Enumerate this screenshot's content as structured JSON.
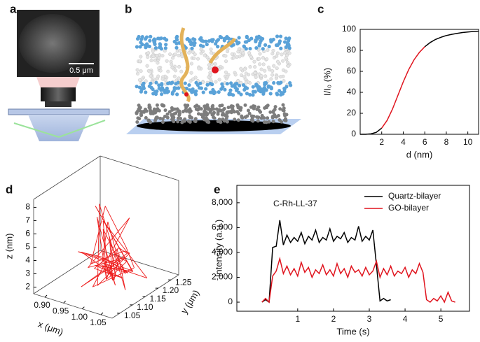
{
  "panel_labels": [
    "a",
    "b",
    "c",
    "d",
    "e"
  ],
  "panel_a": {
    "scale_bar": "0.5 μm"
  },
  "chart_data": [
    {
      "type": "line",
      "xlabel": "d (nm)",
      "ylabel": "I/I₀ (%)",
      "x": [
        0,
        0.5,
        1,
        1.5,
        2,
        2.5,
        3,
        3.5,
        4,
        4.5,
        5,
        5.5,
        6,
        6.5,
        7,
        7.5,
        8,
        8.5,
        9,
        9.5,
        10,
        10.5,
        11
      ],
      "series": [
        {
          "color": "#000000",
          "values": [
            0,
            0.0,
            0.4,
            1.9,
            5.9,
            null,
            null,
            null,
            null,
            null,
            null,
            null,
            83.5,
            87.5,
            90.4,
            92.5,
            94.1,
            95.3,
            96.2,
            97.0,
            97.5,
            98.0,
            98.3
          ]
        },
        {
          "color": "#e0141e",
          "values": [
            null,
            null,
            null,
            null,
            5.9,
            13.2,
            24.0,
            37.0,
            50.0,
            61.5,
            70.9,
            78.1,
            83.5,
            null,
            null,
            null,
            null,
            null,
            null,
            null,
            null,
            null,
            null
          ]
        }
      ],
      "xlim": [
        0,
        11
      ],
      "xticks": [
        2,
        4,
        6,
        8,
        10
      ],
      "ylim": [
        0,
        100
      ],
      "yticks": [
        0,
        20,
        40,
        60,
        80,
        100
      ]
    },
    {
      "type": "line3d",
      "xlabel": "x (μm)",
      "ylabel": "y (μm)",
      "zlabel": "z (nm)",
      "color": "#ee1c1c",
      "x": [
        0.98,
        1.02,
        0.93,
        1.01,
        0.97,
        1.04,
        0.95,
        1.0,
        0.99,
        1.03,
        0.92,
        1.0,
        0.96,
        1.05,
        0.98,
        1.01,
        0.94,
        1.02,
        0.97,
        0.99,
        1.03,
        0.95,
        1.0,
        0.98,
        1.04,
        0.96,
        1.01,
        0.9,
        0.99,
        1.02,
        0.97,
        1.0,
        0.95,
        1.03,
        0.98,
        1.01,
        0.96,
        1.04,
        0.99,
        0.93,
        1.0,
        0.97,
        1.02,
        0.98,
        1.05,
        0.96,
        1.0,
        0.99,
        1.01,
        0.97
      ],
      "y": [
        1.15,
        1.12,
        1.18,
        1.1,
        1.2,
        1.13,
        1.16,
        1.08,
        1.22,
        1.14,
        1.17,
        1.11,
        1.25,
        1.15,
        1.09,
        1.19,
        1.13,
        1.16,
        1.06,
        1.21,
        1.12,
        1.14,
        1.18,
        1.1,
        1.16,
        1.13,
        1.2,
        1.15,
        1.11,
        1.17,
        1.14,
        1.12,
        1.23,
        1.15,
        1.18,
        1.1,
        1.16,
        1.13,
        1.19,
        1.12,
        1.15,
        1.17,
        1.11,
        1.14,
        1.2,
        1.16,
        1.12,
        1.18,
        1.13,
        1.15
      ],
      "z": [
        3.0,
        2.2,
        5.8,
        2.8,
        3.5,
        1.9,
        7.2,
        2.5,
        3.1,
        4.6,
        2.3,
        8.1,
        2.9,
        3.4,
        2.1,
        6.3,
        2.7,
        3.8,
        2.4,
        3.2,
        5.1,
        2.6,
        1.8,
        3.6,
        2.9,
        7.5,
        2.2,
        3.3,
        4.2,
        2.5,
        3.0,
        6.8,
        2.4,
        3.7,
        2.1,
        2.8,
        5.4,
        3.1,
        2.6,
        3.9,
        2.3,
        4.8,
        2.7,
        3.2,
        2.0,
        6.0,
        2.9,
        3.5,
        2.4,
        3.1
      ],
      "xlim": [
        0.87,
        1.08
      ],
      "xticks": [
        {
          "value": 0.9,
          "label": "0.90"
        },
        {
          "value": 0.95,
          "label": "0.95"
        },
        {
          "value": 1.0,
          "label": "1.00"
        },
        1.05
      ],
      "ylim": [
        1.02,
        1.28
      ],
      "yticks": [
        1.05,
        {
          "value": 1.1,
          "label": "1.10"
        },
        1.15,
        {
          "value": 1.2,
          "label": "1.20"
        },
        1.25
      ],
      "zlim": [
        1.5,
        8.6
      ],
      "zticks": [
        2,
        3,
        4,
        5,
        6,
        7,
        8
      ]
    },
    {
      "type": "line",
      "xlabel": "Time (s)",
      "ylabel": "Intensity (a.u.)",
      "annotation": "C-Rh-LL-37",
      "legend": "top-right",
      "frame": true,
      "x": [
        0,
        0.1,
        0.2,
        0.3,
        0.4,
        0.5,
        0.6,
        0.7,
        0.8,
        0.9,
        1.0,
        1.1,
        1.2,
        1.3,
        1.4,
        1.5,
        1.6,
        1.7,
        1.8,
        1.9,
        2.0,
        2.1,
        2.2,
        2.3,
        2.4,
        2.5,
        2.6,
        2.7,
        2.8,
        2.9,
        3.0,
        3.1,
        3.2,
        3.3,
        3.4,
        3.5,
        3.6,
        3.7,
        3.8,
        3.9,
        4.0,
        4.1,
        4.2,
        4.3,
        4.4,
        4.5,
        4.6,
        4.7,
        4.8,
        4.9,
        5.0,
        5.1,
        5.2,
        5.3,
        5.4
      ],
      "series": [
        {
          "name": "Quartz-bilayer",
          "color": "#000000",
          "values": [
            0,
            200,
            0,
            4400,
            4500,
            6600,
            4600,
            5400,
            4800,
            5200,
            4900,
            5600,
            4700,
            5300,
            5000,
            5800,
            4800,
            5200,
            5000,
            5900,
            4900,
            5300,
            5100,
            5600,
            4800,
            5200,
            5000,
            6100,
            4900,
            5300,
            5000,
            5800,
            3000,
            100,
            300,
            100,
            200,
            null,
            null,
            null,
            null,
            null,
            null,
            null,
            null,
            null,
            null,
            null,
            null,
            null,
            null,
            null,
            null,
            null,
            null
          ]
        },
        {
          "name": "GO-bilayer",
          "color": "#e0141e",
          "values": [
            0,
            300,
            0,
            2100,
            2500,
            3500,
            2300,
            2900,
            2200,
            2700,
            2100,
            3200,
            2400,
            2800,
            2000,
            2600,
            2300,
            3000,
            2200,
            2600,
            2100,
            3100,
            2300,
            2700,
            2000,
            2900,
            2400,
            2600,
            2100,
            2800,
            2200,
            2500,
            3300,
            2000,
            2700,
            2200,
            2900,
            2100,
            2500,
            2300,
            2800,
            2000,
            2600,
            2300,
            3100,
            2400,
            200,
            0,
            300,
            100,
            500,
            0,
            800,
            100,
            0
          ]
        }
      ],
      "xlim": [
        -0.7,
        5.8
      ],
      "xticks": [
        1,
        2,
        3,
        4,
        5
      ],
      "ylim": [
        -730,
        9400
      ],
      "yticks": [
        0,
        {
          "value": 2000,
          "label": "2,000"
        },
        {
          "value": 4000,
          "label": "4,000"
        },
        {
          "value": 6000,
          "label": "6,000"
        },
        {
          "value": 8000,
          "label": "8,000"
        }
      ]
    }
  ]
}
